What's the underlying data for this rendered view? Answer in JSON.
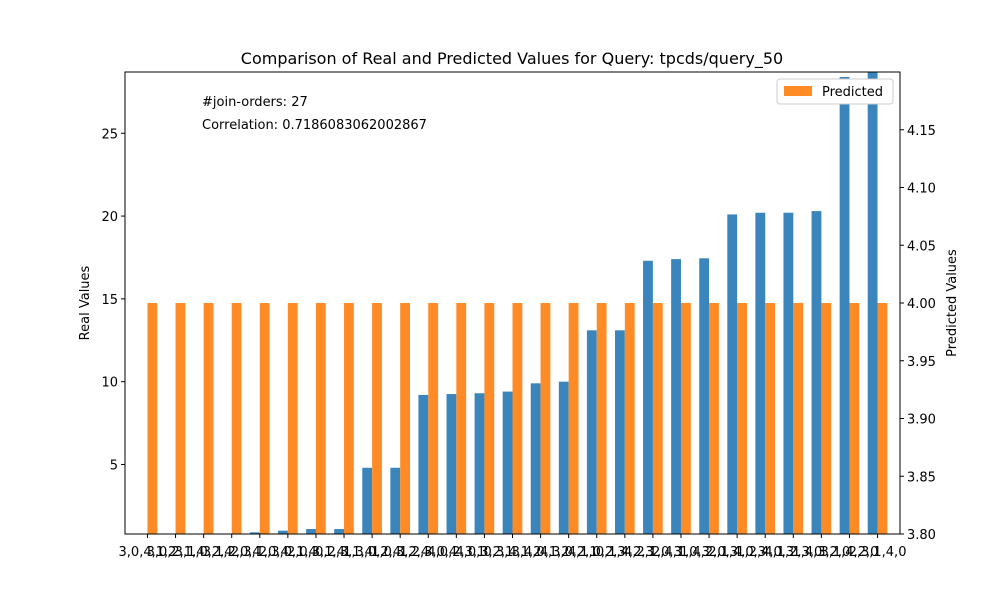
{
  "chart_data": {
    "type": "bar",
    "title": "Comparison of Real and Predicted Values for Query: tpcds/query_50",
    "xlabel": "",
    "ylabel": "Real Values",
    "y2label": "Predicted Values",
    "ylim": [
      0.8,
      28.7
    ],
    "y2lim": [
      3.8,
      4.2
    ],
    "yticks": [
      5,
      10,
      15,
      20,
      25
    ],
    "y2ticks": [
      3.8,
      3.85,
      3.9,
      3.95,
      4.0,
      4.05,
      4.1,
      4.15
    ],
    "grid": false,
    "legend_position": "top-right",
    "colors": {
      "real": "#3a85bb",
      "predicted": "#ff8b26"
    },
    "annotations": [
      "#join-orders: 27",
      "Correlation: 0.7186083062002867"
    ],
    "categories": [
      "3,0,4,1,2",
      "3,0,2,1,4",
      "3,1,0,2,4",
      "3,1,2,0,4",
      "2,3,1,0,4",
      "2,3,0,1,4",
      "2,0,3,1,4",
      "0,2,3,1,4",
      "1,3,0,2,4",
      "1,0,3,2,4",
      "1,2,3,0,4",
      "4,0,2,3,1",
      "4,0,3,2,1",
      "0,3,4,1,2",
      "3,4,0,1,2",
      "4,3,0,2,1",
      "4,1,0,2,3",
      "0,1,4,2,3",
      "4,2,1,0,3",
      "2,4,1,0,3",
      "1,4,2,0,3",
      "2,1,4,0,3",
      "1,2,4,0,3",
      "4,1,2,3,0",
      "1,4,3,2,0",
      "3,1,4,2,0",
      "2,3,1,4,0"
    ],
    "series": [
      {
        "name": "",
        "axis": "left",
        "values": [
          0.3,
          0.7,
          0.7,
          0.7,
          0.9,
          1.0,
          1.1,
          1.1,
          4.8,
          4.8,
          9.2,
          9.25,
          9.3,
          9.4,
          9.9,
          10.0,
          13.1,
          13.1,
          17.3,
          17.4,
          17.45,
          20.1,
          20.2,
          20.2,
          20.3,
          28.4,
          28.7
        ]
      },
      {
        "name": "Predicted",
        "axis": "right",
        "values": [
          4,
          4,
          4,
          4,
          4,
          4,
          4,
          4,
          4,
          4,
          4,
          4,
          4,
          4,
          4,
          4,
          4,
          4,
          4,
          4,
          4,
          4,
          4,
          4,
          4,
          4,
          4
        ]
      }
    ]
  }
}
